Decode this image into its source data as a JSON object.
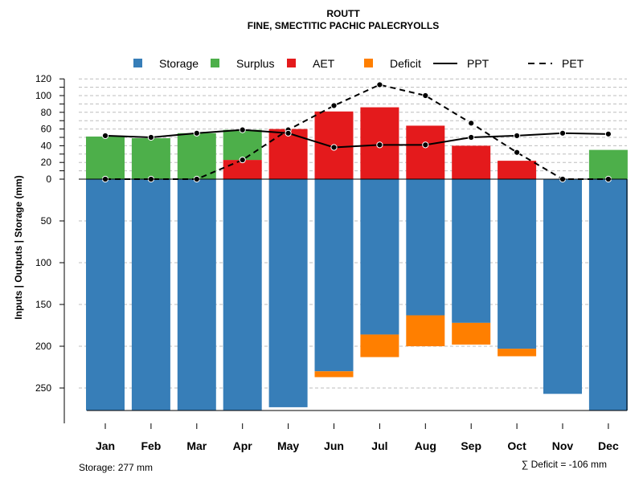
{
  "chart_data": {
    "type": "bar",
    "title": "ROUTT",
    "subtitle": "FINE, SMECTITIC PACHIC PALECRYOLLS",
    "ylabel": "Inputs | Outputs | Storage    (mm)",
    "categories": [
      "Jan",
      "Feb",
      "Mar",
      "Apr",
      "May",
      "Jun",
      "Jul",
      "Aug",
      "Sep",
      "Oct",
      "Nov",
      "Dec"
    ],
    "ylim": [
      -277,
      120
    ],
    "y_ticks_above": [
      0,
      20,
      40,
      60,
      80,
      100,
      120
    ],
    "y_ticks_below": [
      50,
      100,
      150,
      200,
      250
    ],
    "series": [
      {
        "name": "Surplus",
        "color": "#4daf4a",
        "values": [
          51,
          49,
          55,
          36,
          0,
          0,
          0,
          0,
          0,
          0,
          0,
          35
        ]
      },
      {
        "name": "AET",
        "color": "#e41a1c",
        "values": [
          0,
          0,
          0,
          23,
          60,
          81,
          86,
          64,
          40,
          22,
          0,
          0
        ]
      },
      {
        "name": "Storage",
        "color": "#377eb8",
        "values": [
          277,
          277,
          277,
          277,
          273,
          230,
          186,
          163,
          172,
          203,
          257,
          277
        ]
      },
      {
        "name": "Deficit",
        "color": "#ff7f00",
        "values": [
          0,
          0,
          0,
          0,
          0,
          7,
          27,
          37,
          26,
          9,
          0,
          0
        ]
      },
      {
        "name": "PPT",
        "color": "#000000",
        "style": "solid",
        "values": [
          52,
          50,
          55,
          59,
          55,
          38,
          41,
          41,
          50,
          52,
          55,
          54
        ]
      },
      {
        "name": "PET",
        "color": "#000000",
        "style": "dashed",
        "values": [
          0,
          0,
          0,
          23,
          59,
          88,
          113,
          100,
          67,
          32,
          0,
          0
        ]
      }
    ],
    "legend": [
      "Storage",
      "Surplus",
      "AET",
      "Deficit",
      "PPT",
      "PET"
    ],
    "legend_position": "top",
    "grid": true,
    "footer_left": "Storage: 277 mm",
    "footer_right": "∑ Deficit = -106 mm"
  }
}
